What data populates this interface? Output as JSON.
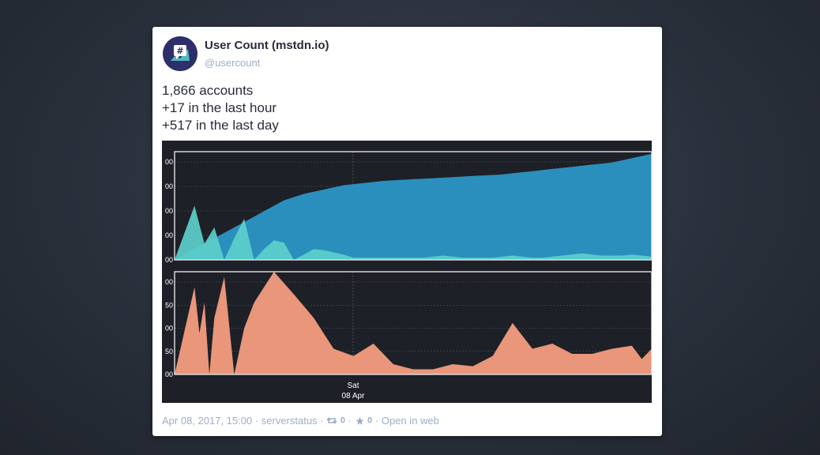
{
  "status": {
    "display_name": "User Count (mstdn.io)",
    "username": "@usercount",
    "lines": [
      "1,866 accounts",
      "+17 in the last hour",
      "+517 in the last day"
    ],
    "timestamp": "Apr 08, 2017, 15:00",
    "application": "serverstatus",
    "sep": "·",
    "boost_count": "0",
    "favourite_count": "0",
    "open_in_web": "Open in web"
  },
  "chart_data": [
    {
      "type": "area",
      "series": [
        {
          "color": "#2a8fbd",
          "x": [
            0,
            2,
            5,
            7,
            8,
            9,
            10,
            11,
            12,
            13,
            14,
            15,
            16,
            17,
            18,
            19,
            20,
            21,
            22,
            23,
            24,
            25,
            26,
            27,
            28,
            29,
            30,
            31,
            32,
            33,
            34,
            35,
            36,
            37,
            38,
            39,
            40,
            41,
            42,
            43,
            44,
            45,
            46,
            47,
            48
          ],
          "values": [
            0.0,
            0.1,
            0.25,
            0.35,
            0.4,
            0.45,
            0.5,
            0.55,
            0.58,
            0.61,
            0.63,
            0.65,
            0.67,
            0.69,
            0.7,
            0.71,
            0.72,
            0.73,
            0.735,
            0.74,
            0.745,
            0.75,
            0.755,
            0.76,
            0.765,
            0.77,
            0.775,
            0.78,
            0.785,
            0.79,
            0.8,
            0.81,
            0.82,
            0.83,
            0.84,
            0.85,
            0.86,
            0.87,
            0.88,
            0.89,
            0.9,
            0.92,
            0.94,
            0.96,
            0.98
          ]
        },
        {
          "color": "#5ccfcb",
          "x": [
            0,
            2,
            3,
            4,
            5,
            6,
            7,
            8,
            9,
            10,
            11,
            12,
            13,
            14,
            15,
            16,
            17,
            18,
            19,
            20,
            21,
            22,
            23,
            24,
            25,
            26,
            27,
            28,
            29,
            30,
            31,
            32,
            33,
            34,
            35,
            36,
            37,
            38,
            39,
            40,
            41,
            42,
            43,
            44,
            45,
            46,
            47,
            48
          ],
          "values": [
            0.0,
            0.5,
            0.15,
            0.3,
            0.0,
            0.2,
            0.38,
            0.0,
            0.1,
            0.18,
            0.16,
            0.0,
            0.05,
            0.1,
            0.09,
            0.07,
            0.05,
            0.02,
            0.02,
            0.02,
            0.02,
            0.02,
            0.02,
            0.02,
            0.02,
            0.03,
            0.04,
            0.03,
            0.02,
            0.02,
            0.02,
            0.02,
            0.03,
            0.04,
            0.03,
            0.02,
            0.02,
            0.03,
            0.04,
            0.05,
            0.06,
            0.05,
            0.04,
            0.04,
            0.04,
            0.05,
            0.04,
            0.03
          ]
        }
      ]
    },
    {
      "type": "area",
      "series": [
        {
          "color": "#e9967a",
          "x": [
            0,
            2,
            2.5,
            3,
            3.5,
            4,
            5,
            6,
            7,
            8,
            10,
            12,
            14,
            16,
            18,
            20,
            22,
            24,
            26,
            28,
            30,
            32,
            34,
            36,
            38,
            40,
            42,
            44,
            46,
            47,
            48
          ],
          "values": [
            0.0,
            0.85,
            0.4,
            0.7,
            0.0,
            0.55,
            0.95,
            0.0,
            0.45,
            0.7,
            1.0,
            0.78,
            0.55,
            0.25,
            0.18,
            0.3,
            0.1,
            0.05,
            0.05,
            0.1,
            0.08,
            0.18,
            0.5,
            0.25,
            0.3,
            0.2,
            0.2,
            0.25,
            0.28,
            0.15,
            0.25
          ]
        }
      ]
    }
  ],
  "chart_axes": {
    "x_tick_day": "Sat",
    "x_tick_date": "08 Apr",
    "top_ytick_labels": [
      "00",
      "00",
      "00",
      "00",
      "00"
    ],
    "bottom_ytick_labels": [
      "00",
      "50",
      "00",
      "50",
      "00"
    ]
  }
}
